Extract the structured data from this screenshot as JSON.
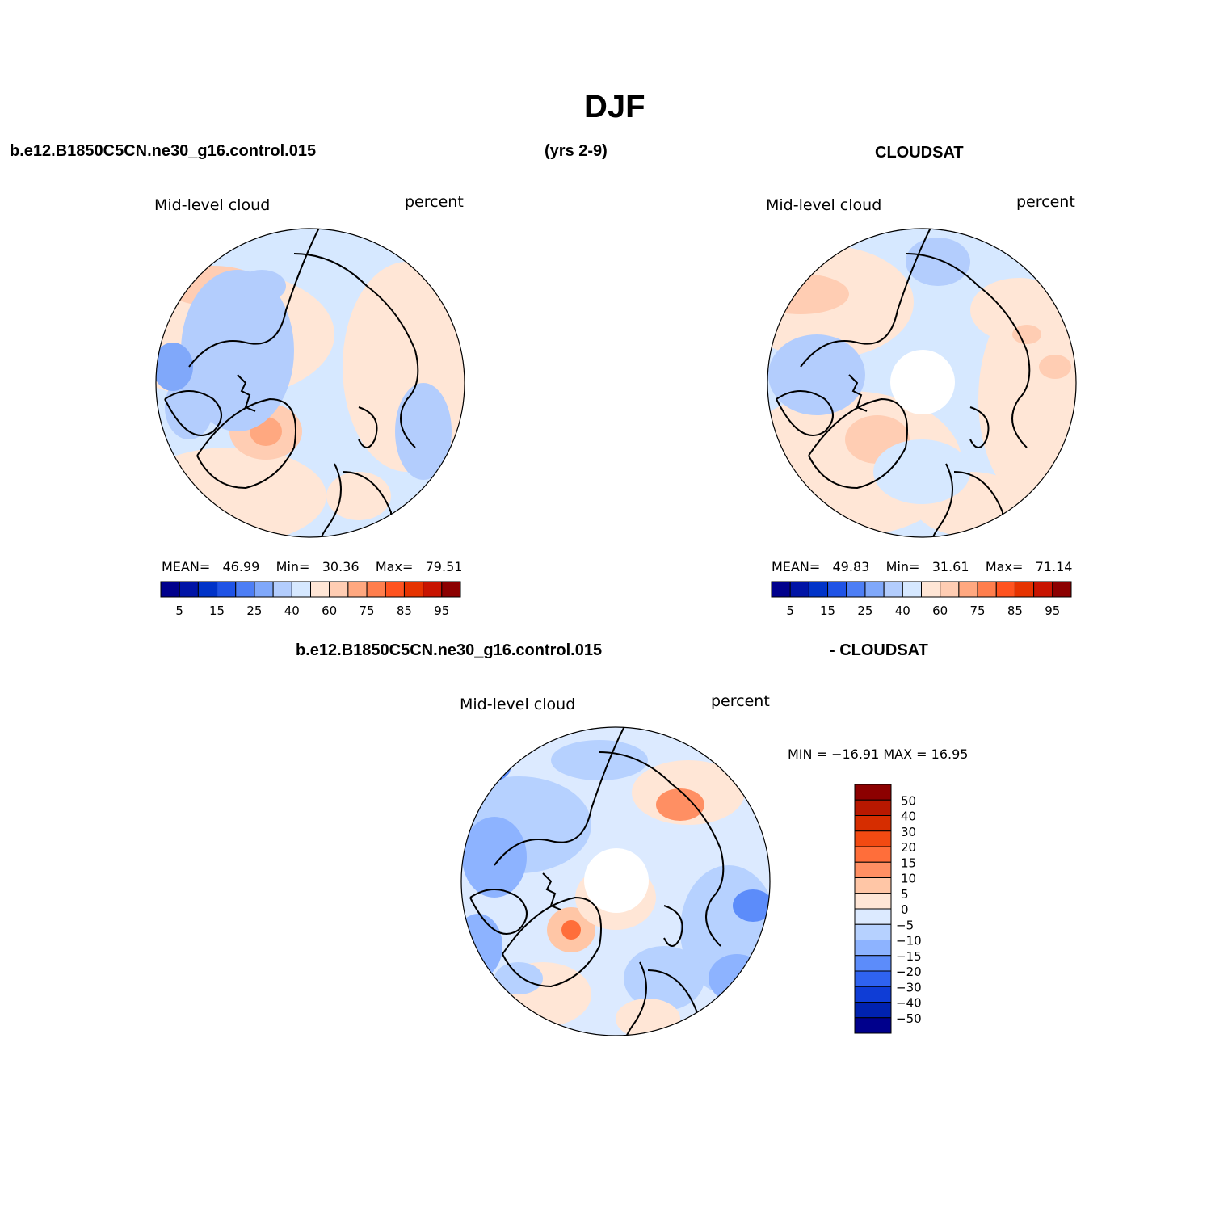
{
  "page_title": "DJF",
  "header": {
    "left_case": "b.e12.B1850C5CN.ne30_g16.control.015",
    "years": "(yrs 2-9)",
    "right_obs": "CLOUDSAT"
  },
  "diff_header": {
    "left": "b.e12.B1850C5CN.ne30_g16.control.015",
    "right": "- CLOUDSAT"
  },
  "colors": {
    "fill_scale": [
      "#00008c",
      "#0014a6",
      "#0033c8",
      "#1f53e6",
      "#4d7ef5",
      "#80a8fa",
      "#b3cdfd",
      "#d6e8ff",
      "#ffe6d6",
      "#ffcdb3",
      "#ffa880",
      "#ff7e4d",
      "#ff531f",
      "#e63300",
      "#c81400",
      "#8c0000"
    ],
    "ocean_light": "#d6e8ff",
    "land_outline": "#000000"
  },
  "chart_data": [
    {
      "type": "heatmap",
      "panel": "model",
      "projection": "north polar stereographic",
      "title": "Mid-level cloud",
      "units": "percent",
      "mean_label": "MEAN=",
      "mean": "46.99",
      "min_label": "Min=",
      "min": "30.36",
      "max_label": "Max=",
      "max": "79.51",
      "colorbar_ticks": [
        "5",
        "15",
        "25",
        "40",
        "60",
        "75",
        "85",
        "95"
      ],
      "colorbar_levels": 16
    },
    {
      "type": "heatmap",
      "panel": "obs",
      "projection": "north polar stereographic",
      "title": "Mid-level cloud",
      "units": "percent",
      "mean_label": "MEAN=",
      "mean": "49.83",
      "min_label": "Min=",
      "min": "31.61",
      "max_label": "Max=",
      "max": "71.14",
      "colorbar_ticks": [
        "5",
        "15",
        "25",
        "40",
        "60",
        "75",
        "85",
        "95"
      ],
      "colorbar_levels": 16,
      "missing_pole": true
    },
    {
      "type": "heatmap",
      "panel": "difference",
      "projection": "north polar stereographic",
      "title": "Mid-level cloud",
      "units": "percent",
      "minmax_text": "MIN = −16.91  MAX =   16.95",
      "colorbar_ticks": [
        "50",
        "40",
        "30",
        "20",
        "15",
        "10",
        "5",
        "0",
        "−5",
        "−10",
        "−15",
        "−20",
        "−30",
        "−40",
        "−50"
      ],
      "colorbar_colors": [
        "#8c0000",
        "#b81800",
        "#d62d00",
        "#f24a12",
        "#ff6e3a",
        "#ff8f63",
        "#ffc6a6",
        "#ffe6d6",
        "#dceaff",
        "#b6d1ff",
        "#8db3ff",
        "#5c8cfa",
        "#2f63f0",
        "#0f3dd6",
        "#0022b0",
        "#00008c"
      ],
      "missing_pole": true
    }
  ]
}
